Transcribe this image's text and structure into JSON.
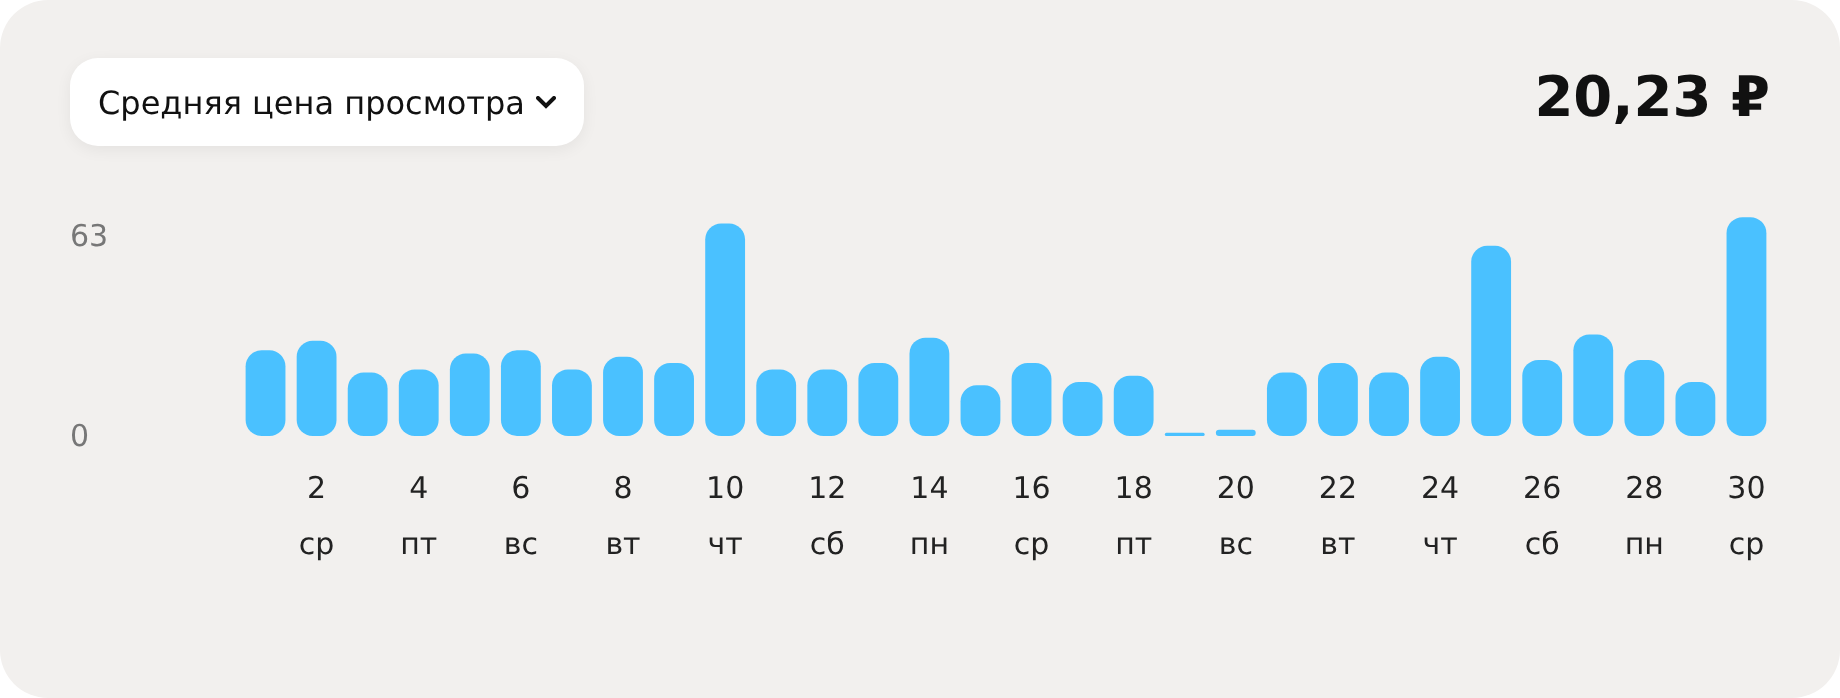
{
  "chart_data": {
    "type": "bar",
    "title": "Средняя цена просмотра",
    "annotations": [
      "20,23 ₽"
    ],
    "categories": [
      null,
      "2\nср",
      null,
      "4\nпт",
      null,
      "6\nвс",
      null,
      "8\nвт",
      null,
      "10\nчт",
      null,
      "12\nсб",
      null,
      "14\nпн",
      null,
      "16\nср",
      null,
      "18\nпт",
      null,
      "20\nвс",
      null,
      "22\nвт",
      null,
      "24\nчт",
      null,
      "26\nсб",
      null,
      "28\nпн",
      null,
      "30\nср"
    ],
    "values": [
      27,
      30,
      20,
      21,
      26,
      27,
      21,
      25,
      23,
      67,
      21,
      21,
      23,
      31,
      16,
      23,
      17,
      19,
      1,
      2,
      20,
      23,
      20,
      25,
      60,
      24,
      32,
      24,
      17,
      69
    ],
    "color": "#4ac1ff",
    "ylim": [
      0,
      70
    ],
    "yticks": [
      0,
      63
    ],
    "grid": false
  }
}
